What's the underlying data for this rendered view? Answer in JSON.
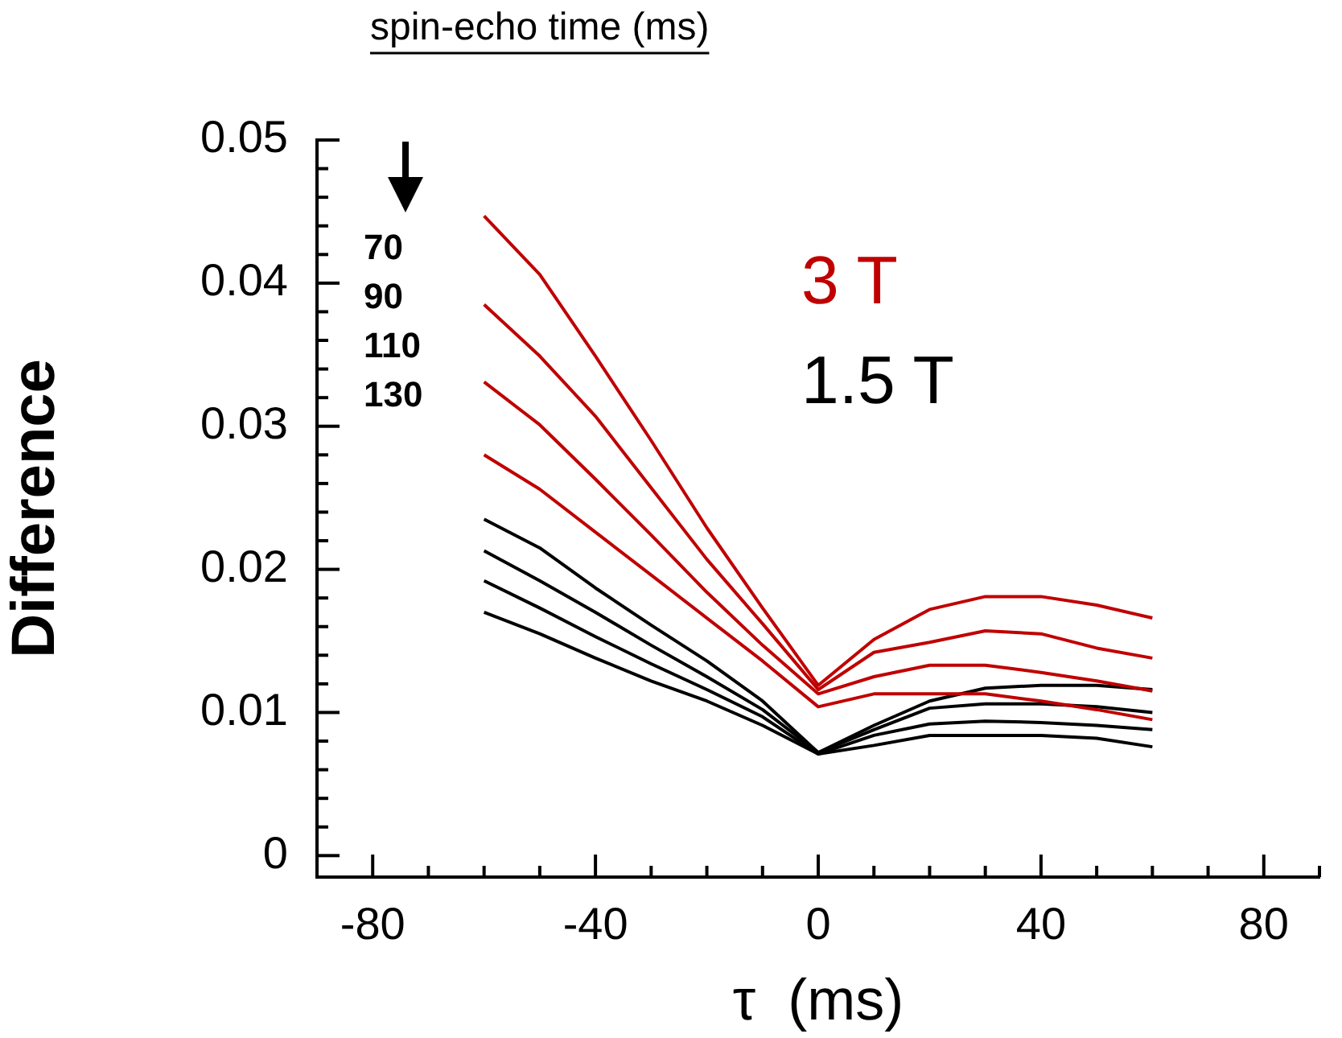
{
  "chart_data": {
    "type": "line",
    "xlabel": "τ  (ms)",
    "ylabel": "Difference",
    "x": [
      -60,
      -50,
      -40,
      -30,
      -20,
      -10,
      0,
      10,
      20,
      30,
      40,
      50,
      60
    ],
    "series": [
      {
        "name": "3 T",
        "color": "#c00000",
        "values": [
          0.0447,
          0.0406,
          0.0349,
          0.029,
          0.0229,
          0.0173,
          0.0119,
          0.0151,
          0.0172,
          0.0181,
          0.0181,
          0.0175,
          0.0166
        ]
      },
      {
        "color": "#c00000",
        "values": [
          0.0385,
          0.0349,
          0.0307,
          0.0257,
          0.0207,
          0.0162,
          0.0116,
          0.0142,
          0.0149,
          0.0157,
          0.0155,
          0.0145,
          0.0138
        ]
      },
      {
        "color": "#c00000",
        "values": [
          0.0331,
          0.0301,
          0.0263,
          0.0224,
          0.0184,
          0.0147,
          0.0113,
          0.0125,
          0.0133,
          0.0133,
          0.0128,
          0.0122,
          0.0115
        ]
      },
      {
        "color": "#c00000",
        "values": [
          0.028,
          0.0256,
          0.0226,
          0.0196,
          0.0166,
          0.0136,
          0.0104,
          0.0113,
          0.0113,
          0.0113,
          0.0108,
          0.0102,
          0.0095
        ]
      },
      {
        "name": "1.5 T",
        "color": "#000000",
        "values": [
          0.0235,
          0.0215,
          0.0187,
          0.0161,
          0.0136,
          0.0108,
          0.0072,
          0.0091,
          0.0108,
          0.0117,
          0.0119,
          0.0119,
          0.0116
        ]
      },
      {
        "color": "#000000",
        "values": [
          0.0213,
          0.0192,
          0.017,
          0.0147,
          0.0125,
          0.0102,
          0.0072,
          0.0088,
          0.0103,
          0.0106,
          0.0106,
          0.0104,
          0.01
        ]
      },
      {
        "color": "#000000",
        "values": [
          0.0192,
          0.0173,
          0.0153,
          0.0134,
          0.0116,
          0.0097,
          0.0071,
          0.0084,
          0.0092,
          0.0094,
          0.0093,
          0.0091,
          0.0088
        ]
      },
      {
        "color": "#000000",
        "values": [
          0.017,
          0.0155,
          0.0138,
          0.0122,
          0.0108,
          0.0091,
          0.0071,
          0.0077,
          0.0084,
          0.0084,
          0.0084,
          0.0082,
          0.0076
        ]
      }
    ],
    "annotations": [
      "spin-echo time (ms)",
      "70",
      "90",
      "110",
      "130"
    ],
    "xlim": [
      -90,
      90
    ],
    "xticks": [
      {
        "value": -90,
        "label": null
      },
      -80,
      {
        "value": -70,
        "label": null
      },
      {
        "value": -60,
        "label": null
      },
      {
        "value": -50,
        "label": null
      },
      -40,
      {
        "value": -30,
        "label": null
      },
      {
        "value": -20,
        "label": null
      },
      {
        "value": -10,
        "label": null
      },
      0,
      {
        "value": 10,
        "label": null
      },
      {
        "value": 20,
        "label": null
      },
      {
        "value": 30,
        "label": null
      },
      40,
      {
        "value": 50,
        "label": null
      },
      {
        "value": 60,
        "label": null
      },
      {
        "value": 70,
        "label": null
      },
      80,
      {
        "value": 90,
        "label": null
      }
    ],
    "ylim": [
      -0.0015,
      0.05
    ],
    "yticks": [
      0,
      {
        "value": 0.002,
        "label": null
      },
      {
        "value": 0.004,
        "label": null
      },
      {
        "value": 0.006,
        "label": null
      },
      {
        "value": 0.008,
        "label": null
      },
      0.01,
      {
        "value": 0.012,
        "label": null
      },
      {
        "value": 0.014,
        "label": null
      },
      {
        "value": 0.016,
        "label": null
      },
      {
        "value": 0.018,
        "label": null
      },
      0.02,
      {
        "value": 0.022,
        "label": null
      },
      {
        "value": 0.024,
        "label": null
      },
      {
        "value": 0.026,
        "label": null
      },
      {
        "value": 0.028,
        "label": null
      },
      0.03,
      {
        "value": 0.032,
        "label": null
      },
      {
        "value": 0.034,
        "label": null
      },
      {
        "value": 0.036,
        "label": null
      },
      {
        "value": 0.038,
        "label": null
      },
      0.04,
      {
        "value": 0.042,
        "label": null
      },
      {
        "value": 0.044,
        "label": null
      },
      {
        "value": 0.046,
        "label": null
      },
      {
        "value": 0.048,
        "label": null
      },
      0.05
    ],
    "legend": "top right",
    "grid": false,
    "marker": "none",
    "line_style": "solid"
  }
}
